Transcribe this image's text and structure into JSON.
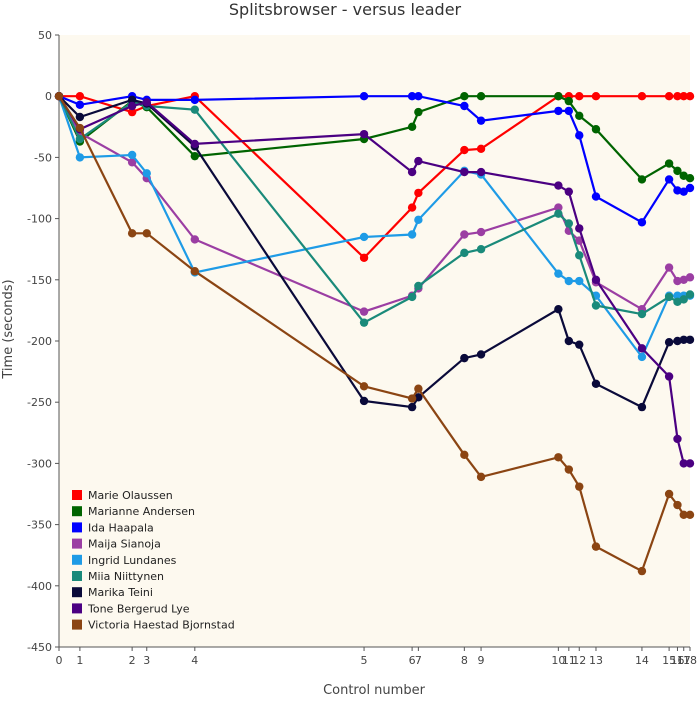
{
  "chart_data": {
    "type": "line",
    "title": "Splitsbrowser - versus leader",
    "xlabel": "Control number",
    "ylabel": "Time (seconds)",
    "ylim": [
      -450,
      50
    ],
    "yticks": [
      50,
      0,
      -50,
      -100,
      -150,
      -200,
      -250,
      -300,
      -350,
      -400,
      -450
    ],
    "xlim": [
      0,
      30.2
    ],
    "x_categories": [
      "0",
      "1",
      "2",
      "3",
      "4",
      "5",
      "6",
      "7",
      "8",
      "9",
      "10",
      "11",
      "12",
      "13",
      "14",
      "15",
      "16",
      "17",
      "18"
    ],
    "x": [
      0,
      1,
      3.5,
      4.2,
      6.5,
      14.6,
      16.9,
      17.2,
      19.4,
      20.2,
      23.9,
      24.4,
      24.9,
      25.7,
      27.9,
      29.2,
      29.6,
      29.9,
      30.2
    ],
    "grid": false,
    "legend_position": "bottom-left",
    "series": [
      {
        "name": "Marie Olaussen",
        "color": "#ff0000",
        "values": [
          0,
          0,
          -13,
          -8,
          0,
          -132,
          -91,
          -79,
          -44,
          -43,
          0,
          0,
          0,
          0,
          0,
          0,
          0,
          0,
          0
        ]
      },
      {
        "name": "Marianne Andersen",
        "color": "#006400",
        "values": [
          0,
          -37,
          -4,
          -9,
          -49,
          -35,
          -25,
          -13,
          0,
          0,
          0,
          -4,
          -16,
          -27,
          -68,
          -55,
          -61,
          -65,
          -67
        ]
      },
      {
        "name": "Ida Haapala",
        "color": "#0000ff",
        "values": [
          0,
          -7,
          0,
          -3,
          -3,
          0,
          0,
          0,
          -8,
          -20,
          -12,
          -12,
          -32,
          -82,
          -103,
          -68,
          -77,
          -78,
          -75
        ]
      },
      {
        "name": "Maija Sianoja",
        "color": "#9b3ea3",
        "values": [
          0,
          -30,
          -54,
          -67,
          -117,
          -176,
          -163,
          -157,
          -113,
          -111,
          -91,
          -110,
          -118,
          -152,
          -174,
          -140,
          -151,
          -150,
          -148
        ]
      },
      {
        "name": "Ingrid Lundanes",
        "color": "#1e9be6",
        "values": [
          0,
          -50,
          -48,
          -63,
          -144,
          -115,
          -113,
          -101,
          -61,
          -64,
          -145,
          -151,
          -151,
          -163,
          -213,
          -163,
          -163,
          -163,
          -163
        ]
      },
      {
        "name": "Miia Niittynen",
        "color": "#1a8a7a",
        "values": [
          0,
          -35,
          -5,
          -8,
          -11,
          -185,
          -164,
          -155,
          -128,
          -125,
          -96,
          -104,
          -130,
          -171,
          -178,
          -164,
          -168,
          -166,
          -162
        ]
      },
      {
        "name": "Marika Teini",
        "color": "#0a0a3a",
        "values": [
          0,
          -17,
          -3,
          -6,
          -41,
          -249,
          -254,
          -246,
          -214,
          -211,
          -174,
          -200,
          -203,
          -235,
          -254,
          -201,
          -200,
          -199,
          -199
        ]
      },
      {
        "name": "Tone Bergerud Lye",
        "color": "#4b0082",
        "values": [
          0,
          -27,
          -8,
          -5,
          -39,
          -31,
          -62,
          -53,
          -62,
          -62,
          -73,
          -78,
          -108,
          -150,
          -206,
          -229,
          -280,
          -300,
          -300
        ]
      },
      {
        "name": "Victoria Haestad Bjornstad",
        "color": "#8b4513",
        "values": [
          0,
          -26,
          -112,
          -112,
          -143,
          -237,
          -247,
          -239,
          -293,
          -311,
          -295,
          -305,
          -319,
          -368,
          -388,
          -325,
          -334,
          -342,
          -342
        ]
      }
    ]
  }
}
